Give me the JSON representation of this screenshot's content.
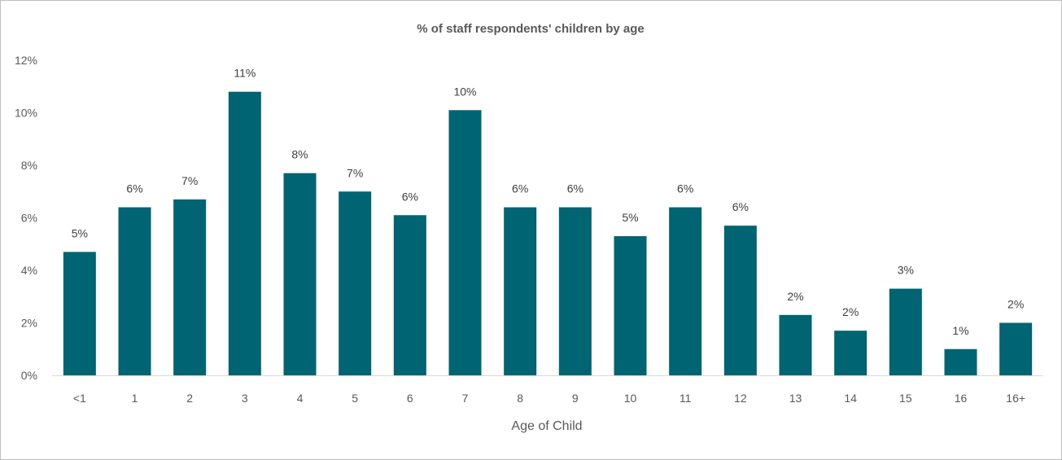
{
  "chart_data": {
    "type": "bar",
    "title": "% of staff respondents' children by age",
    "xlabel": "Age of Child",
    "ylabel": "",
    "categories": [
      "<1",
      "1",
      "2",
      "3",
      "4",
      "5",
      "6",
      "7",
      "8",
      "9",
      "10",
      "11",
      "12",
      "13",
      "14",
      "15",
      "16",
      "16+"
    ],
    "values": [
      4.7,
      6.4,
      6.7,
      10.8,
      7.7,
      7.0,
      6.1,
      10.1,
      6.4,
      6.4,
      5.3,
      6.4,
      5.7,
      2.3,
      1.7,
      3.3,
      1.0,
      2.0
    ],
    "data_labels": [
      "5%",
      "6%",
      "7%",
      "11%",
      "8%",
      "7%",
      "6%",
      "10%",
      "6%",
      "6%",
      "5%",
      "6%",
      "6%",
      "2%",
      "2%",
      "3%",
      "1%",
      "2%"
    ],
    "y_ticks": [
      0,
      2,
      4,
      6,
      8,
      10,
      12
    ],
    "y_tick_labels": [
      "0%",
      "2%",
      "4%",
      "6%",
      "8%",
      "10%",
      "12%"
    ],
    "ylim": [
      0,
      12
    ],
    "grid": false,
    "legend": "none",
    "bar_color": "#006472"
  }
}
